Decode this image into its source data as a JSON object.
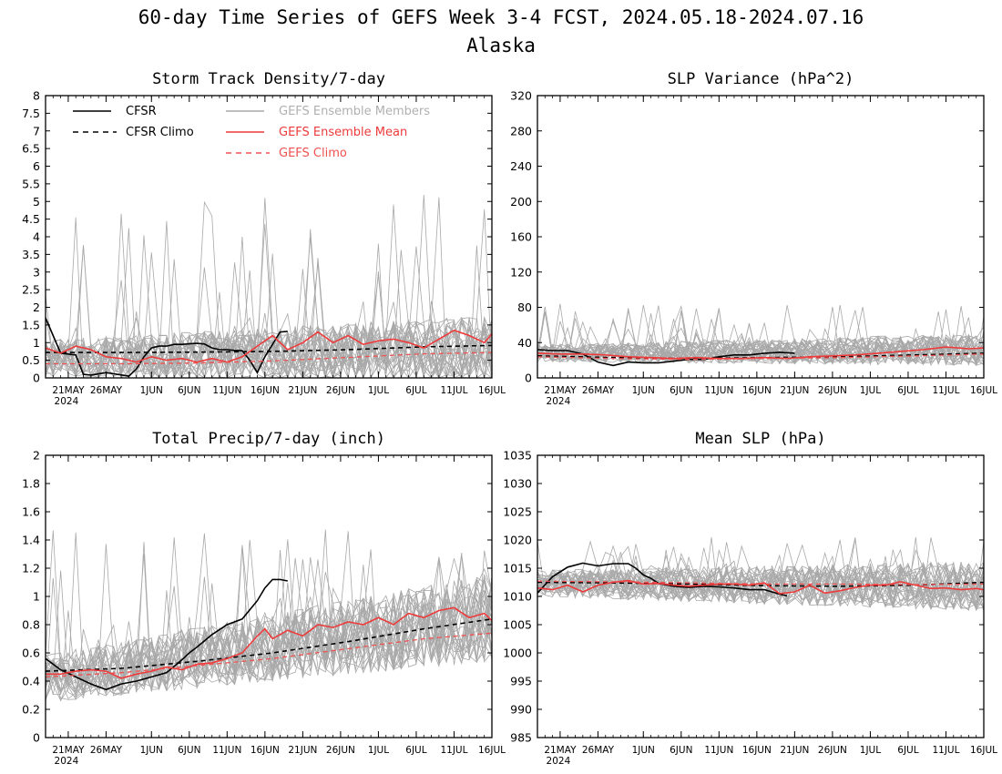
{
  "figure": {
    "title_line1": "60-day Time Series of GEFS Week 3-4 FCST, 2024.05.18-2024.07.16",
    "title_line2": "Alaska"
  },
  "legend": {
    "cfsr": "CFSR",
    "cfsr_climo": "CFSR Climo",
    "members": "GEFS Ensemble Members",
    "mean": "GEFS Ensemble Mean",
    "gefs_climo": "GEFS Climo"
  },
  "colors": {
    "members": "#a8a8a8",
    "mean": "#ee3a3a",
    "gefs_climo": "#f05050",
    "cfsr": "#000000"
  },
  "x_axis": {
    "labels": [
      "21MAY",
      "26MAY",
      "1JUN",
      "6JUN",
      "11JUN",
      "16JUN",
      "21JUN",
      "26JUN",
      "1JUL",
      "6JUL",
      "11JUL",
      "16JUL"
    ],
    "label_days": [
      3,
      8,
      14,
      19,
      24,
      29,
      34,
      39,
      44,
      49,
      54,
      59
    ],
    "year_label": "2024",
    "range": [
      0,
      59
    ]
  },
  "chart_data": [
    {
      "type": "line",
      "title": "Storm Track Density/7-day",
      "ylim": [
        0,
        8
      ],
      "yticks": [
        "0",
        "0.5",
        "1",
        "1.5",
        "2",
        "2.5",
        "3",
        "3.5",
        "4",
        "4.5",
        "5",
        "5.5",
        "6",
        "6.5",
        "7",
        "7.5",
        "8"
      ],
      "members_band": {
        "base_start": 0.55,
        "base_end": 0.8,
        "spread": 0.75,
        "spike_max": 5.3
      },
      "series": [
        {
          "name": "CFSR",
          "x": [
            0,
            1,
            2,
            4,
            5,
            6,
            8,
            9,
            11,
            12,
            13,
            14,
            15,
            16,
            17,
            18,
            20,
            21,
            22,
            23,
            24,
            25,
            26,
            27,
            28,
            29,
            30,
            31,
            32
          ],
          "y": [
            1.7,
            1.2,
            0.7,
            0.65,
            0.1,
            0.08,
            0.15,
            0.12,
            0.05,
            0.25,
            0.6,
            0.85,
            0.9,
            0.9,
            0.95,
            0.95,
            0.98,
            0.96,
            0.85,
            0.8,
            0.8,
            0.78,
            0.77,
            0.5,
            0.15,
            0.6,
            0.95,
            1.3,
            1.32
          ]
        },
        {
          "name": "CFSR Climo",
          "x": [
            0,
            10,
            20,
            30,
            40,
            50,
            59
          ],
          "y": [
            0.72,
            0.72,
            0.73,
            0.75,
            0.8,
            0.88,
            0.92
          ]
        },
        {
          "name": "GEFS Ensemble Mean",
          "x": [
            0,
            2,
            4,
            6,
            8,
            10,
            12,
            14,
            16,
            18,
            20,
            22,
            24,
            26,
            28,
            30,
            32,
            34,
            36,
            38,
            40,
            42,
            44,
            46,
            48,
            50,
            52,
            54,
            56,
            58,
            59
          ],
          "y": [
            0.85,
            0.7,
            0.9,
            0.8,
            0.6,
            0.55,
            0.45,
            0.6,
            0.5,
            0.55,
            0.45,
            0.55,
            0.45,
            0.6,
            0.9,
            1.2,
            0.8,
            1.0,
            1.3,
            1.0,
            1.2,
            0.95,
            1.05,
            1.1,
            1.0,
            0.85,
            1.1,
            1.35,
            1.2,
            1.0,
            1.25
          ]
        },
        {
          "name": "GEFS Climo",
          "x": [
            0,
            10,
            20,
            30,
            40,
            50,
            59
          ],
          "y": [
            0.4,
            0.4,
            0.42,
            0.48,
            0.58,
            0.68,
            0.72
          ]
        }
      ]
    },
    {
      "type": "line",
      "title": "SLP Variance (hPa^2)",
      "ylim": [
        0,
        320
      ],
      "yticks": [
        "0",
        "40",
        "80",
        "120",
        "160",
        "200",
        "240",
        "280",
        "320"
      ],
      "members_band": {
        "base_start": 28,
        "base_end": 32,
        "spread": 14,
        "spike_max": 84
      },
      "series": [
        {
          "name": "CFSR",
          "x": [
            0,
            2,
            4,
            6,
            8,
            10,
            12,
            14,
            16,
            18,
            20,
            22,
            24,
            26,
            28,
            30,
            32,
            34
          ],
          "y": [
            32,
            31,
            31,
            27,
            18,
            14,
            18,
            17,
            17,
            19,
            21,
            21,
            24,
            26,
            26,
            28,
            29,
            28
          ]
        },
        {
          "name": "CFSR Climo",
          "x": [
            0,
            10,
            20,
            30,
            40,
            50,
            59
          ],
          "y": [
            25,
            23,
            22,
            23,
            24,
            26,
            28
          ]
        },
        {
          "name": "GEFS Ensemble Mean",
          "x": [
            0,
            3,
            6,
            9,
            12,
            15,
            18,
            21,
            24,
            27,
            30,
            33,
            36,
            39,
            42,
            45,
            48,
            51,
            54,
            57,
            59
          ],
          "y": [
            28,
            27,
            27,
            26,
            24,
            23,
            22,
            23,
            22,
            22,
            23,
            22,
            24,
            25,
            26,
            28,
            30,
            32,
            35,
            33,
            34
          ]
        },
        {
          "name": "GEFS Climo",
          "x": [
            0,
            10,
            20,
            30,
            40,
            50,
            59
          ],
          "y": [
            24,
            22,
            21,
            22,
            23,
            25,
            27
          ]
        }
      ]
    },
    {
      "type": "line",
      "title": "Total Precip/7-day (inch)",
      "ylim": [
        0,
        2
      ],
      "yticks": [
        "0",
        "0.2",
        "0.4",
        "0.6",
        "0.8",
        "1",
        "1.2",
        "1.4",
        "1.6",
        "1.8",
        "2"
      ],
      "members_band": {
        "base_start": 0.42,
        "base_end": 0.85,
        "spread": 0.24,
        "spike_max": 1.48
      },
      "series": [
        {
          "name": "CFSR",
          "x": [
            0,
            2,
            4,
            6,
            8,
            10,
            12,
            14,
            16,
            18,
            19,
            20,
            22,
            24,
            26,
            28,
            29,
            30,
            31,
            32
          ],
          "y": [
            0.56,
            0.48,
            0.43,
            0.38,
            0.34,
            0.38,
            0.4,
            0.43,
            0.46,
            0.55,
            0.6,
            0.64,
            0.73,
            0.8,
            0.84,
            0.97,
            1.06,
            1.12,
            1.12,
            1.11
          ]
        },
        {
          "name": "CFSR Climo",
          "x": [
            0,
            10,
            20,
            30,
            40,
            50,
            59
          ],
          "y": [
            0.47,
            0.49,
            0.54,
            0.6,
            0.68,
            0.77,
            0.84
          ]
        },
        {
          "name": "GEFS Ensemble Mean",
          "x": [
            0,
            2,
            4,
            6,
            8,
            10,
            12,
            14,
            16,
            18,
            20,
            22,
            24,
            26,
            28,
            29,
            30,
            32,
            34,
            36,
            38,
            40,
            42,
            44,
            46,
            48,
            50,
            52,
            54,
            56,
            58,
            59
          ],
          "y": [
            0.45,
            0.45,
            0.47,
            0.48,
            0.47,
            0.42,
            0.45,
            0.47,
            0.5,
            0.48,
            0.52,
            0.53,
            0.56,
            0.6,
            0.72,
            0.77,
            0.7,
            0.76,
            0.72,
            0.8,
            0.78,
            0.82,
            0.8,
            0.85,
            0.8,
            0.88,
            0.85,
            0.9,
            0.92,
            0.85,
            0.88,
            0.83
          ]
        },
        {
          "name": "GEFS Climo",
          "x": [
            0,
            10,
            20,
            30,
            40,
            50,
            59
          ],
          "y": [
            0.43,
            0.46,
            0.51,
            0.56,
            0.63,
            0.7,
            0.74
          ]
        }
      ]
    },
    {
      "type": "line",
      "title": "Mean SLP (hPa)",
      "ylim": [
        985,
        1035
      ],
      "yticks": [
        "985",
        "990",
        "995",
        "1000",
        "1005",
        "1010",
        "1015",
        "1020",
        "1025",
        "1030",
        "1035"
      ],
      "members_band": {
        "base_start": 1012.3,
        "base_end": 1011.8,
        "spread": 3.4,
        "spike_max": 1020.5
      },
      "series": [
        {
          "name": "CFSR",
          "x": [
            0,
            2,
            4,
            6,
            8,
            10,
            12,
            13,
            14,
            15,
            16,
            18,
            20,
            22,
            24,
            26,
            28,
            30,
            32,
            33
          ],
          "y": [
            1010.6,
            1013.5,
            1015.2,
            1015.9,
            1015.4,
            1015.8,
            1015.8,
            1015,
            1013.8,
            1013.2,
            1012.3,
            1011.8,
            1011.6,
            1011.8,
            1011.7,
            1011.5,
            1011.2,
            1011.2,
            1010.4,
            1010.1
          ]
        },
        {
          "name": "CFSR Climo",
          "x": [
            0,
            10,
            20,
            30,
            40,
            50,
            59
          ],
          "y": [
            1012.5,
            1012.4,
            1012.2,
            1011.9,
            1011.8,
            1012,
            1012.5
          ]
        },
        {
          "name": "GEFS Ensemble Mean",
          "x": [
            0,
            2,
            4,
            6,
            8,
            10,
            12,
            14,
            16,
            18,
            20,
            22,
            24,
            26,
            28,
            30,
            32,
            34,
            36,
            38,
            40,
            42,
            44,
            46,
            48,
            50,
            52,
            54,
            56,
            58,
            59
          ],
          "y": [
            1011.5,
            1011.2,
            1012,
            1010.8,
            1012,
            1012.5,
            1012.8,
            1012.2,
            1012.3,
            1012,
            1011.8,
            1012,
            1012.2,
            1012.2,
            1012,
            1012.4,
            1010.5,
            1010.8,
            1012,
            1010.6,
            1011,
            1011.6,
            1012,
            1012,
            1012.6,
            1012,
            1011.4,
            1011.5,
            1011.2,
            1011.4,
            1011.2
          ]
        },
        {
          "name": "GEFS Climo",
          "x": [
            0,
            10,
            20,
            30,
            40,
            50,
            59
          ],
          "y": [
            1012.7,
            1012.6,
            1012.4,
            1012.2,
            1012.2,
            1012.1,
            1012.2
          ]
        }
      ]
    }
  ]
}
